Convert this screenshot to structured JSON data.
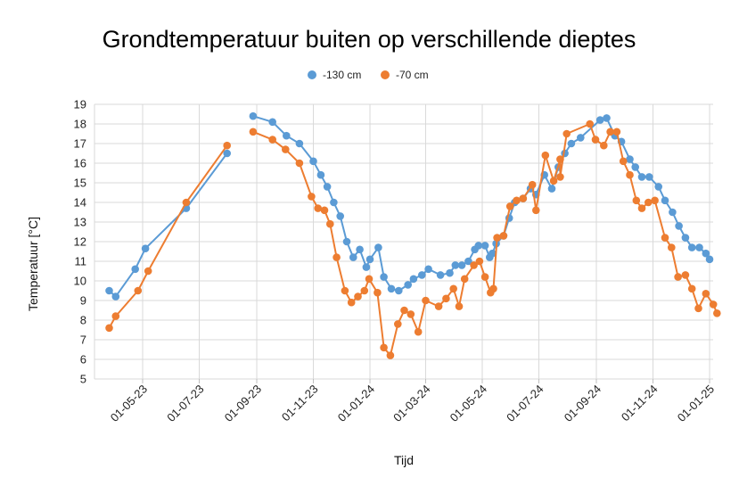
{
  "chart_data": {
    "type": "line",
    "title": "Grondtemperatuur buiten op verschillende dieptes",
    "xlabel": "Tijd",
    "ylabel": "Temperatuur [°C]",
    "ylim": [
      5,
      19
    ],
    "y_ticks": [
      "5",
      "6",
      "7",
      "8",
      "9",
      "10",
      "11",
      "12",
      "13",
      "14",
      "15",
      "16",
      "17",
      "18",
      "19"
    ],
    "x_range": [
      "2023-03-20",
      "2025-01-01"
    ],
    "x_ticks": [
      {
        "date": "2023-05-01",
        "label": "01-05-23"
      },
      {
        "date": "2023-07-01",
        "label": "01-07-23"
      },
      {
        "date": "2023-09-01",
        "label": "01-09-23"
      },
      {
        "date": "2023-11-01",
        "label": "01-11-23"
      },
      {
        "date": "2024-01-01",
        "label": "01-01-24"
      },
      {
        "date": "2024-03-01",
        "label": "01-03-24"
      },
      {
        "date": "2024-05-01",
        "label": "01-05-24"
      },
      {
        "date": "2024-07-01",
        "label": "01-07-24"
      },
      {
        "date": "2024-09-01",
        "label": "01-09-24"
      },
      {
        "date": "2024-11-01",
        "label": "01-11-24"
      },
      {
        "date": "2025-01-01",
        "label": "01-01-25"
      }
    ],
    "grid": true,
    "legend_position": "top",
    "series": [
      {
        "name": "-130 cm",
        "color": "#5B9BD5",
        "segments": [
          [
            [
              "2023-03-26",
              9.5
            ],
            [
              "2023-04-02",
              9.2
            ],
            [
              "2023-04-23",
              10.6
            ],
            [
              "2023-05-04",
              11.65
            ],
            [
              "2023-06-17",
              13.7
            ],
            [
              "2023-07-31",
              16.5
            ]
          ],
          [
            [
              "2023-08-28",
              18.4
            ],
            [
              "2023-09-18",
              18.1
            ],
            [
              "2023-10-03",
              17.4
            ],
            [
              "2023-10-17",
              17.0
            ],
            [
              "2023-11-01",
              16.1
            ],
            [
              "2023-11-09",
              15.4
            ],
            [
              "2023-11-16",
              14.8
            ],
            [
              "2023-11-23",
              14.0
            ],
            [
              "2023-11-30",
              13.3
            ],
            [
              "2023-12-07",
              12.0
            ],
            [
              "2023-12-14",
              11.2
            ],
            [
              "2023-12-21",
              11.6
            ],
            [
              "2023-12-28",
              10.7
            ],
            [
              "2024-01-01",
              11.1
            ],
            [
              "2024-01-10",
              11.7
            ],
            [
              "2024-01-16",
              10.2
            ],
            [
              "2024-01-24",
              9.6
            ],
            [
              "2024-02-01",
              9.5
            ],
            [
              "2024-02-11",
              9.8
            ],
            [
              "2024-02-17",
              10.1
            ],
            [
              "2024-02-26",
              10.3
            ],
            [
              "2024-03-04",
              10.6
            ],
            [
              "2024-03-17",
              10.3
            ],
            [
              "2024-03-27",
              10.4
            ],
            [
              "2024-04-02",
              10.8
            ],
            [
              "2024-04-09",
              10.8
            ],
            [
              "2024-04-16",
              11.0
            ],
            [
              "2024-04-23",
              11.6
            ],
            [
              "2024-04-27",
              11.8
            ],
            [
              "2024-05-04",
              11.8
            ],
            [
              "2024-05-09",
              11.2
            ],
            [
              "2024-05-12",
              11.4
            ],
            [
              "2024-05-16",
              11.9
            ],
            [
              "2024-05-24",
              12.3
            ],
            [
              "2024-05-30",
              13.2
            ],
            [
              "2024-06-05",
              14.0
            ],
            [
              "2024-06-14",
              14.2
            ],
            [
              "2024-06-22",
              14.7
            ],
            [
              "2024-06-28",
              14.4
            ],
            [
              "2024-07-07",
              15.4
            ],
            [
              "2024-07-15",
              14.7
            ],
            [
              "2024-07-22",
              15.8
            ],
            [
              "2024-07-29",
              16.5
            ],
            [
              "2024-08-05",
              17.0
            ],
            [
              "2024-08-15",
              17.3
            ],
            [
              "2024-09-05",
              18.2
            ],
            [
              "2024-09-12",
              18.3
            ],
            [
              "2024-09-21",
              17.4
            ],
            [
              "2024-09-28",
              17.1
            ],
            [
              "2024-10-07",
              16.2
            ],
            [
              "2024-10-13",
              15.8
            ],
            [
              "2024-10-20",
              15.3
            ],
            [
              "2024-10-28",
              15.3
            ],
            [
              "2024-11-07",
              14.8
            ],
            [
              "2024-11-14",
              14.1
            ],
            [
              "2024-11-22",
              13.5
            ],
            [
              "2024-11-29",
              12.8
            ],
            [
              "2024-12-06",
              12.2
            ],
            [
              "2024-12-13",
              11.7
            ],
            [
              "2024-12-21",
              11.7
            ],
            [
              "2024-12-28",
              11.4
            ],
            [
              "2025-01-01",
              11.1
            ]
          ]
        ]
      },
      {
        "name": "-70 cm",
        "color": "#ED7D31",
        "segments": [
          [
            [
              "2023-03-26",
              7.6
            ],
            [
              "2023-04-02",
              8.2
            ],
            [
              "2023-04-26",
              9.5
            ],
            [
              "2023-05-07",
              10.5
            ],
            [
              "2023-06-17",
              14.0
            ],
            [
              "2023-07-31",
              16.9
            ]
          ],
          [
            [
              "2023-08-28",
              17.6
            ],
            [
              "2023-09-18",
              17.2
            ],
            [
              "2023-10-02",
              16.7
            ],
            [
              "2023-10-17",
              16.0
            ],
            [
              "2023-10-30",
              14.3
            ],
            [
              "2023-11-06",
              13.7
            ],
            [
              "2023-11-13",
              13.6
            ],
            [
              "2023-11-19",
              12.9
            ],
            [
              "2023-11-26",
              11.2
            ],
            [
              "2023-12-05",
              9.5
            ],
            [
              "2023-12-12",
              8.9
            ],
            [
              "2023-12-19",
              9.2
            ],
            [
              "2023-12-26",
              9.5
            ],
            [
              "2023-12-31",
              10.1
            ],
            [
              "2024-01-09",
              9.4
            ],
            [
              "2024-01-16",
              6.6
            ],
            [
              "2024-01-23",
              6.2
            ],
            [
              "2024-01-31",
              7.8
            ],
            [
              "2024-02-07",
              8.5
            ],
            [
              "2024-02-14",
              8.3
            ],
            [
              "2024-02-22",
              7.4
            ],
            [
              "2024-03-01",
              9.0
            ],
            [
              "2024-03-15",
              8.7
            ],
            [
              "2024-03-23",
              9.1
            ],
            [
              "2024-03-31",
              9.6
            ],
            [
              "2024-04-06",
              8.7
            ],
            [
              "2024-04-12",
              10.1
            ],
            [
              "2024-04-22",
              10.8
            ],
            [
              "2024-04-28",
              11.0
            ],
            [
              "2024-05-04",
              10.2
            ],
            [
              "2024-05-10",
              9.4
            ],
            [
              "2024-05-13",
              9.6
            ],
            [
              "2024-05-17",
              12.2
            ],
            [
              "2024-05-24",
              12.3
            ],
            [
              "2024-05-31",
              13.8
            ],
            [
              "2024-06-07",
              14.1
            ],
            [
              "2024-06-14",
              14.2
            ],
            [
              "2024-06-24",
              14.9
            ],
            [
              "2024-06-28",
              13.6
            ],
            [
              "2024-07-08",
              16.4
            ],
            [
              "2024-07-17",
              15.1
            ],
            [
              "2024-07-24",
              16.2
            ],
            [
              "2024-07-24",
              15.3
            ],
            [
              "2024-07-31",
              17.5
            ],
            [
              "2024-08-25",
              18.0
            ],
            [
              "2024-08-31",
              17.2
            ],
            [
              "2024-09-09",
              16.9
            ],
            [
              "2024-09-16",
              17.6
            ],
            [
              "2024-09-23",
              17.6
            ],
            [
              "2024-09-30",
              16.1
            ],
            [
              "2024-10-07",
              15.4
            ],
            [
              "2024-10-14",
              14.1
            ],
            [
              "2024-10-20",
              13.7
            ],
            [
              "2024-10-27",
              14.0
            ],
            [
              "2024-11-03",
              14.1
            ],
            [
              "2024-11-14",
              12.2
            ],
            [
              "2024-11-21",
              11.7
            ],
            [
              "2024-11-28",
              10.2
            ],
            [
              "2024-12-06",
              10.3
            ],
            [
              "2024-12-13",
              9.6
            ],
            [
              "2024-12-20",
              8.6
            ],
            [
              "2024-12-28",
              9.35
            ],
            [
              "2025-01-05",
              8.8
            ],
            [
              "2025-01-09",
              8.35
            ]
          ]
        ]
      }
    ]
  }
}
